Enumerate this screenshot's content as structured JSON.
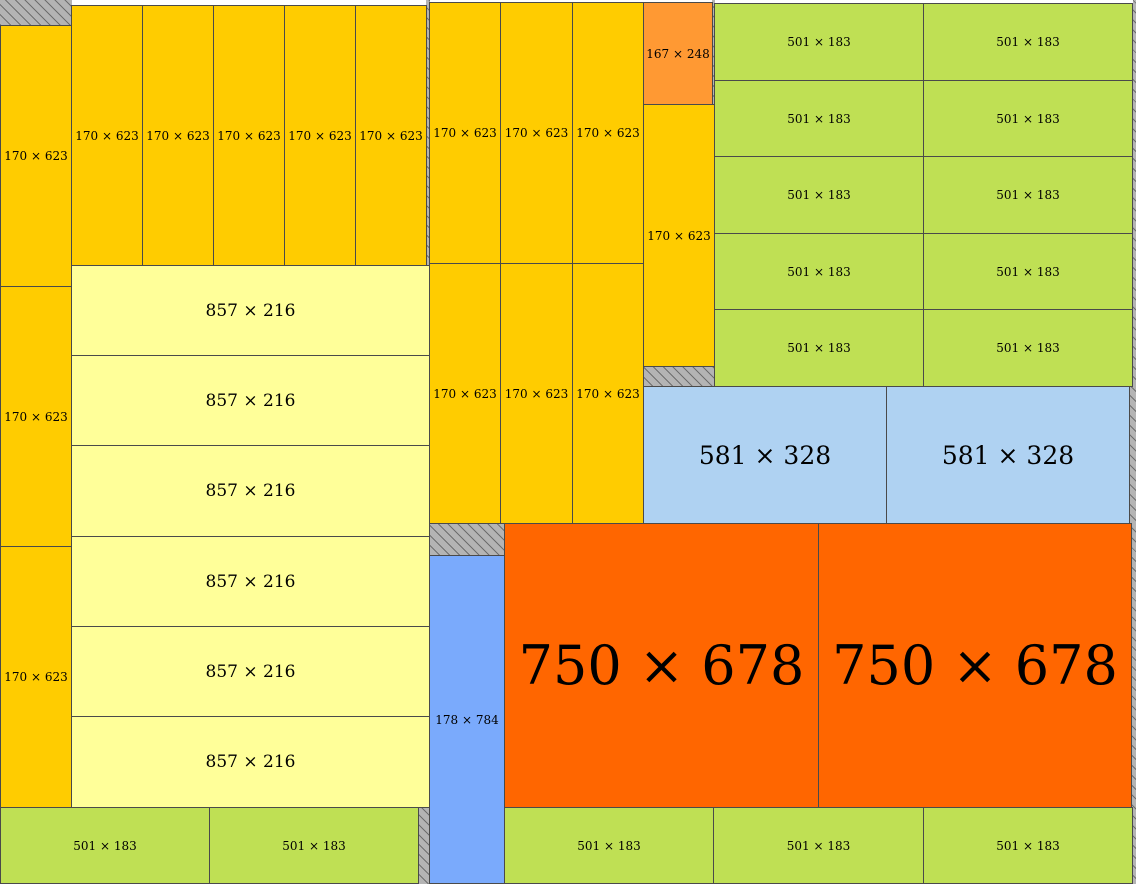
{
  "colors": {
    "w170x623": "#ffcc00",
    "w857x216": "#ffff99",
    "w501x183": "#bfe054",
    "w167x248": "#ff9933",
    "w581x328": "#afd2f2",
    "w178x784": "#7aaafc",
    "w750x678": "#ff6600",
    "waste": "#b4b4b4"
  },
  "pieces": [
    {
      "id": "p170-left-1",
      "label": "170 × 623",
      "kind": "w170x623"
    },
    {
      "id": "p170-left-2",
      "label": "170 × 623",
      "kind": "w170x623"
    },
    {
      "id": "p170-left-3",
      "label": "170 × 623",
      "kind": "w170x623"
    },
    {
      "id": "p170-top-1",
      "label": "170 × 623",
      "kind": "w170x623"
    },
    {
      "id": "p170-top-2",
      "label": "170 × 623",
      "kind": "w170x623"
    },
    {
      "id": "p170-top-3",
      "label": "170 × 623",
      "kind": "w170x623"
    },
    {
      "id": "p170-top-4",
      "label": "170 × 623",
      "kind": "w170x623"
    },
    {
      "id": "p170-top-5",
      "label": "170 × 623",
      "kind": "w170x623"
    },
    {
      "id": "p857-1",
      "label": "857 × 216",
      "kind": "w857x216"
    },
    {
      "id": "p857-2",
      "label": "857 × 216",
      "kind": "w857x216"
    },
    {
      "id": "p857-3",
      "label": "857 × 216",
      "kind": "w857x216"
    },
    {
      "id": "p857-4",
      "label": "857 × 216",
      "kind": "w857x216"
    },
    {
      "id": "p857-5",
      "label": "857 × 216",
      "kind": "w857x216"
    },
    {
      "id": "p857-6",
      "label": "857 × 216",
      "kind": "w857x216"
    },
    {
      "id": "p501-bottom-left-1",
      "label": "501 × 183",
      "kind": "w501x183"
    },
    {
      "id": "p501-bottom-left-2",
      "label": "501 × 183",
      "kind": "w501x183"
    },
    {
      "id": "p170-mid-1",
      "label": "170 × 623",
      "kind": "w170x623"
    },
    {
      "id": "p170-mid-2",
      "label": "170 × 623",
      "kind": "w170x623"
    },
    {
      "id": "p170-mid-3",
      "label": "170 × 623",
      "kind": "w170x623"
    },
    {
      "id": "p170-mid-4",
      "label": "170 × 623",
      "kind": "w170x623"
    },
    {
      "id": "p170-mid-5",
      "label": "170 × 623",
      "kind": "w170x623"
    },
    {
      "id": "p170-mid-6",
      "label": "170 × 623",
      "kind": "w170x623"
    },
    {
      "id": "p167",
      "label": "167 × 248",
      "kind": "w167x248"
    },
    {
      "id": "p170-right",
      "label": "170 × 623",
      "kind": "w170x623"
    },
    {
      "id": "p501-grid-r1c1",
      "label": "501 × 183",
      "kind": "w501x183"
    },
    {
      "id": "p501-grid-r1c2",
      "label": "501 × 183",
      "kind": "w501x183"
    },
    {
      "id": "p501-grid-r2c1",
      "label": "501 × 183",
      "kind": "w501x183"
    },
    {
      "id": "p501-grid-r2c2",
      "label": "501 × 183",
      "kind": "w501x183"
    },
    {
      "id": "p501-grid-r3c1",
      "label": "501 × 183",
      "kind": "w501x183"
    },
    {
      "id": "p501-grid-r3c2",
      "label": "501 × 183",
      "kind": "w501x183"
    },
    {
      "id": "p501-grid-r4c1",
      "label": "501 × 183",
      "kind": "w501x183"
    },
    {
      "id": "p501-grid-r4c2",
      "label": "501 × 183",
      "kind": "w501x183"
    },
    {
      "id": "p501-grid-r5c1",
      "label": "501 × 183",
      "kind": "w501x183"
    },
    {
      "id": "p501-grid-r5c2",
      "label": "501 × 183",
      "kind": "w501x183"
    },
    {
      "id": "p581-1",
      "label": "581 × 328",
      "kind": "w581x328"
    },
    {
      "id": "p581-2",
      "label": "581 × 328",
      "kind": "w581x328"
    },
    {
      "id": "p178",
      "label": "178 × 784",
      "kind": "w178x784"
    },
    {
      "id": "p750-1",
      "label": "750 × 678",
      "kind": "w750x678"
    },
    {
      "id": "p750-2",
      "label": "750 × 678",
      "kind": "w750x678"
    },
    {
      "id": "p501-bottom-right-1",
      "label": "501 × 183",
      "kind": "w501x183"
    },
    {
      "id": "p501-bottom-right-2",
      "label": "501 × 183",
      "kind": "w501x183"
    },
    {
      "id": "p501-bottom-right-3",
      "label": "501 × 183",
      "kind": "w501x183"
    }
  ]
}
